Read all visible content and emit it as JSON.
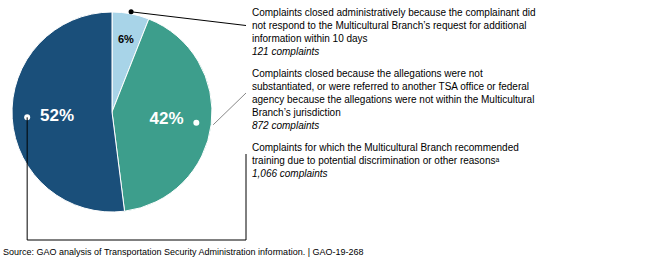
{
  "chart_data": {
    "type": "pie",
    "values": [
      6,
      42,
      52
    ],
    "value_labels": [
      "6%",
      "42%",
      "52%"
    ],
    "data_labels": true,
    "colors": [
      "#a8d4e8",
      "#3d9e8c",
      "#1a4f7a"
    ],
    "annotations": [
      [
        "Complaints closed administratively because the complainant did",
        "not respond to the Multicultural Branch’s request for additional",
        "information within 10 days",
        "121 complaints"
      ],
      [
        "Complaints closed because the allegations were not",
        "substantiated, or were referred to another TSA office or federal",
        "agency because the allegations were not within the Multicultural",
        "Branch’s jurisdiction",
        "872 complaints"
      ],
      [
        "Complaints for which the Multicultural Branch recommended",
        "training due to potential discrimination or other reasonsᵃ",
        "1,066 complaints"
      ]
    ],
    "source": "Source: GAO analysis of Transportation Security Administration information.  |  GAO-19-268"
  }
}
